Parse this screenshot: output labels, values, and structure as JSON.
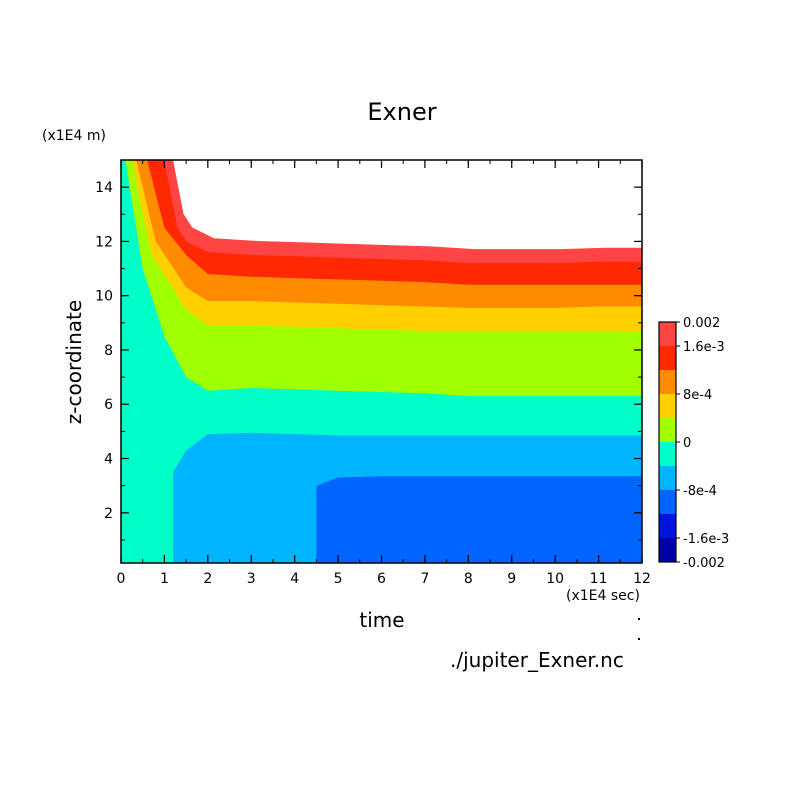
{
  "chart_data": {
    "type": "contour",
    "title": "Exner",
    "xlabel": "time",
    "ylabel": "z-coordinate",
    "x_unit": "(x1E4 sec)",
    "y_unit": "(x1E4 m)",
    "xlim": [
      0,
      12
    ],
    "ylim": [
      0.15,
      15
    ],
    "x_ticks": [
      0,
      1,
      2,
      3,
      4,
      5,
      6,
      7,
      8,
      9,
      10,
      11,
      12
    ],
    "y_ticks": [
      2,
      4,
      6,
      8,
      10,
      12,
      14
    ],
    "levels": [
      -0.002,
      -0.0016,
      -0.0012,
      -0.0008,
      -0.0004,
      0,
      0.0004,
      0.0008,
      0.0012,
      0.0016,
      0.002
    ],
    "colorbar_labels": [
      "-0.002",
      "-1.6e-3",
      "-8e-4",
      "0",
      "8e-4",
      "1.6e-3",
      "0.002"
    ],
    "colors": [
      "#0000a8",
      "#0014e0",
      "#0064ff",
      "#00b4ff",
      "#00ffc8",
      "#a0ff00",
      "#ffd000",
      "#ff8c00",
      "#ff2800",
      "#ff4444"
    ],
    "contours": [
      {
        "level": 0.0016,
        "x": [
          1.0,
          1.3,
          1.5,
          2.0,
          3,
          4,
          5,
          6,
          7,
          8,
          9,
          10,
          11,
          12
        ],
        "z": [
          15,
          12.5,
          12.0,
          11.6,
          11.5,
          11.45,
          11.4,
          11.35,
          11.3,
          11.2,
          11.2,
          11.2,
          11.25,
          11.25
        ]
      },
      {
        "level": 0.0012,
        "x": [
          0.6,
          1.0,
          1.5,
          2.0,
          3,
          4,
          5,
          6,
          7,
          8,
          9,
          10,
          11,
          12
        ],
        "z": [
          15,
          12.5,
          11.5,
          10.8,
          10.7,
          10.65,
          10.6,
          10.55,
          10.5,
          10.4,
          10.4,
          10.4,
          10.4,
          10.4
        ]
      },
      {
        "level": 0.0008,
        "x": [
          0.35,
          0.8,
          1.5,
          2.0,
          3,
          4,
          5,
          6,
          7,
          8,
          9,
          10,
          11,
          12
        ],
        "z": [
          15,
          12.0,
          10.3,
          9.8,
          9.8,
          9.75,
          9.7,
          9.65,
          9.6,
          9.55,
          9.55,
          9.55,
          9.6,
          9.6
        ]
      },
      {
        "level": 0.0004,
        "x": [
          0.25,
          0.7,
          1.5,
          2.0,
          3,
          4,
          5,
          6,
          7,
          8,
          9,
          10,
          11,
          12
        ],
        "z": [
          15,
          11.5,
          9.5,
          8.9,
          8.9,
          8.85,
          8.8,
          8.75,
          8.7,
          8.7,
          8.7,
          8.7,
          8.7,
          8.7
        ]
      },
      {
        "level": 0.0,
        "x": [
          0.1,
          0.5,
          1.0,
          1.5,
          2.0,
          3,
          4,
          5,
          6,
          7,
          8,
          9,
          10,
          11,
          12
        ],
        "z": [
          15,
          11.0,
          8.5,
          7.0,
          6.5,
          6.6,
          6.55,
          6.5,
          6.45,
          6.4,
          6.3,
          6.3,
          6.3,
          6.3,
          6.3
        ]
      },
      {
        "level": -0.0004,
        "x": [
          1.2,
          1.5,
          2.0,
          3,
          4,
          5,
          6,
          7,
          8,
          9,
          10,
          11,
          12
        ],
        "z": [
          3.5,
          4.3,
          4.9,
          4.95,
          4.9,
          4.85,
          4.85,
          4.85,
          4.85,
          4.85,
          4.85,
          4.85,
          4.85
        ]
      },
      {
        "level": -0.0008,
        "x": [
          4.5,
          5,
          6,
          7,
          8,
          9,
          10,
          11,
          12
        ],
        "z": [
          3.0,
          3.3,
          3.35,
          3.35,
          3.35,
          3.35,
          3.35,
          3.35,
          3.35
        ]
      }
    ]
  },
  "footer": {
    "filename": "./jupiter_Exner.nc"
  }
}
